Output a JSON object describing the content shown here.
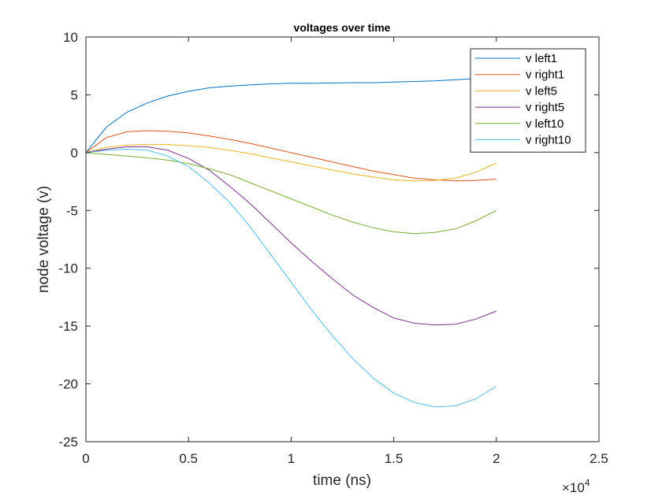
{
  "chart_data": {
    "type": "line",
    "title": "voltages over time",
    "xlabel": "time (ns)",
    "ylabel": "node voltage (v)",
    "xlim": [
      0,
      25000
    ],
    "ylim": [
      -25,
      10
    ],
    "x_ticks": [
      0,
      5000,
      10000,
      15000,
      20000,
      25000
    ],
    "x_tick_labels": [
      "0",
      "0.5",
      "1",
      "1.5",
      "2",
      "2.5"
    ],
    "x_exponent_label": "×10",
    "x_exponent_power": "4",
    "y_ticks": [
      10,
      5,
      0,
      -5,
      -10,
      -15,
      -20,
      -25
    ],
    "y_tick_labels": [
      "10",
      "5",
      "0",
      "-5",
      "-10",
      "-15",
      "-20",
      "-25"
    ],
    "grid": false,
    "legend_position": "top-right",
    "x": [
      0,
      1000,
      2000,
      3000,
      4000,
      5000,
      6000,
      7000,
      8000,
      9000,
      10000,
      11000,
      12000,
      13000,
      14000,
      15000,
      16000,
      17000,
      18000,
      19000,
      20000
    ],
    "series": [
      {
        "name": "v left1",
        "color": "#0072BD",
        "values": [
          0,
          2.2,
          3.5,
          4.3,
          4.9,
          5.3,
          5.6,
          5.75,
          5.85,
          5.95,
          6.0,
          6.0,
          6.02,
          6.05,
          6.05,
          6.1,
          6.15,
          6.2,
          6.3,
          6.4,
          6.6
        ]
      },
      {
        "name": "v right1",
        "color": "#D95319",
        "values": [
          0,
          1.3,
          1.8,
          1.9,
          1.85,
          1.7,
          1.45,
          1.15,
          0.8,
          0.4,
          0.0,
          -0.4,
          -0.8,
          -1.2,
          -1.6,
          -1.9,
          -2.2,
          -2.35,
          -2.45,
          -2.4,
          -2.3
        ]
      },
      {
        "name": "v left5",
        "color": "#EDB120",
        "values": [
          0,
          0.45,
          0.65,
          0.7,
          0.7,
          0.6,
          0.45,
          0.2,
          -0.1,
          -0.45,
          -0.8,
          -1.15,
          -1.5,
          -1.85,
          -2.1,
          -2.35,
          -2.45,
          -2.4,
          -2.2,
          -1.7,
          -0.9
        ]
      },
      {
        "name": "v right5",
        "color": "#7E2F8E",
        "values": [
          0,
          0.3,
          0.5,
          0.5,
          0.2,
          -0.5,
          -1.5,
          -2.9,
          -4.4,
          -6.1,
          -7.8,
          -9.4,
          -10.9,
          -12.3,
          -13.4,
          -14.3,
          -14.75,
          -14.9,
          -14.85,
          -14.4,
          -13.7
        ]
      },
      {
        "name": "v left10",
        "color": "#77AC30",
        "values": [
          0,
          -0.15,
          -0.3,
          -0.45,
          -0.65,
          -0.95,
          -1.4,
          -1.9,
          -2.6,
          -3.3,
          -4.0,
          -4.7,
          -5.4,
          -6.0,
          -6.5,
          -6.85,
          -7.0,
          -6.9,
          -6.6,
          -5.9,
          -5.0
        ]
      },
      {
        "name": "v right10",
        "color": "#4DBEEE",
        "values": [
          0,
          0.2,
          0.3,
          0.2,
          -0.3,
          -1.2,
          -2.6,
          -4.3,
          -6.4,
          -8.8,
          -11.2,
          -13.6,
          -15.8,
          -17.8,
          -19.5,
          -20.8,
          -21.6,
          -22.0,
          -21.9,
          -21.3,
          -20.2
        ]
      }
    ]
  }
}
